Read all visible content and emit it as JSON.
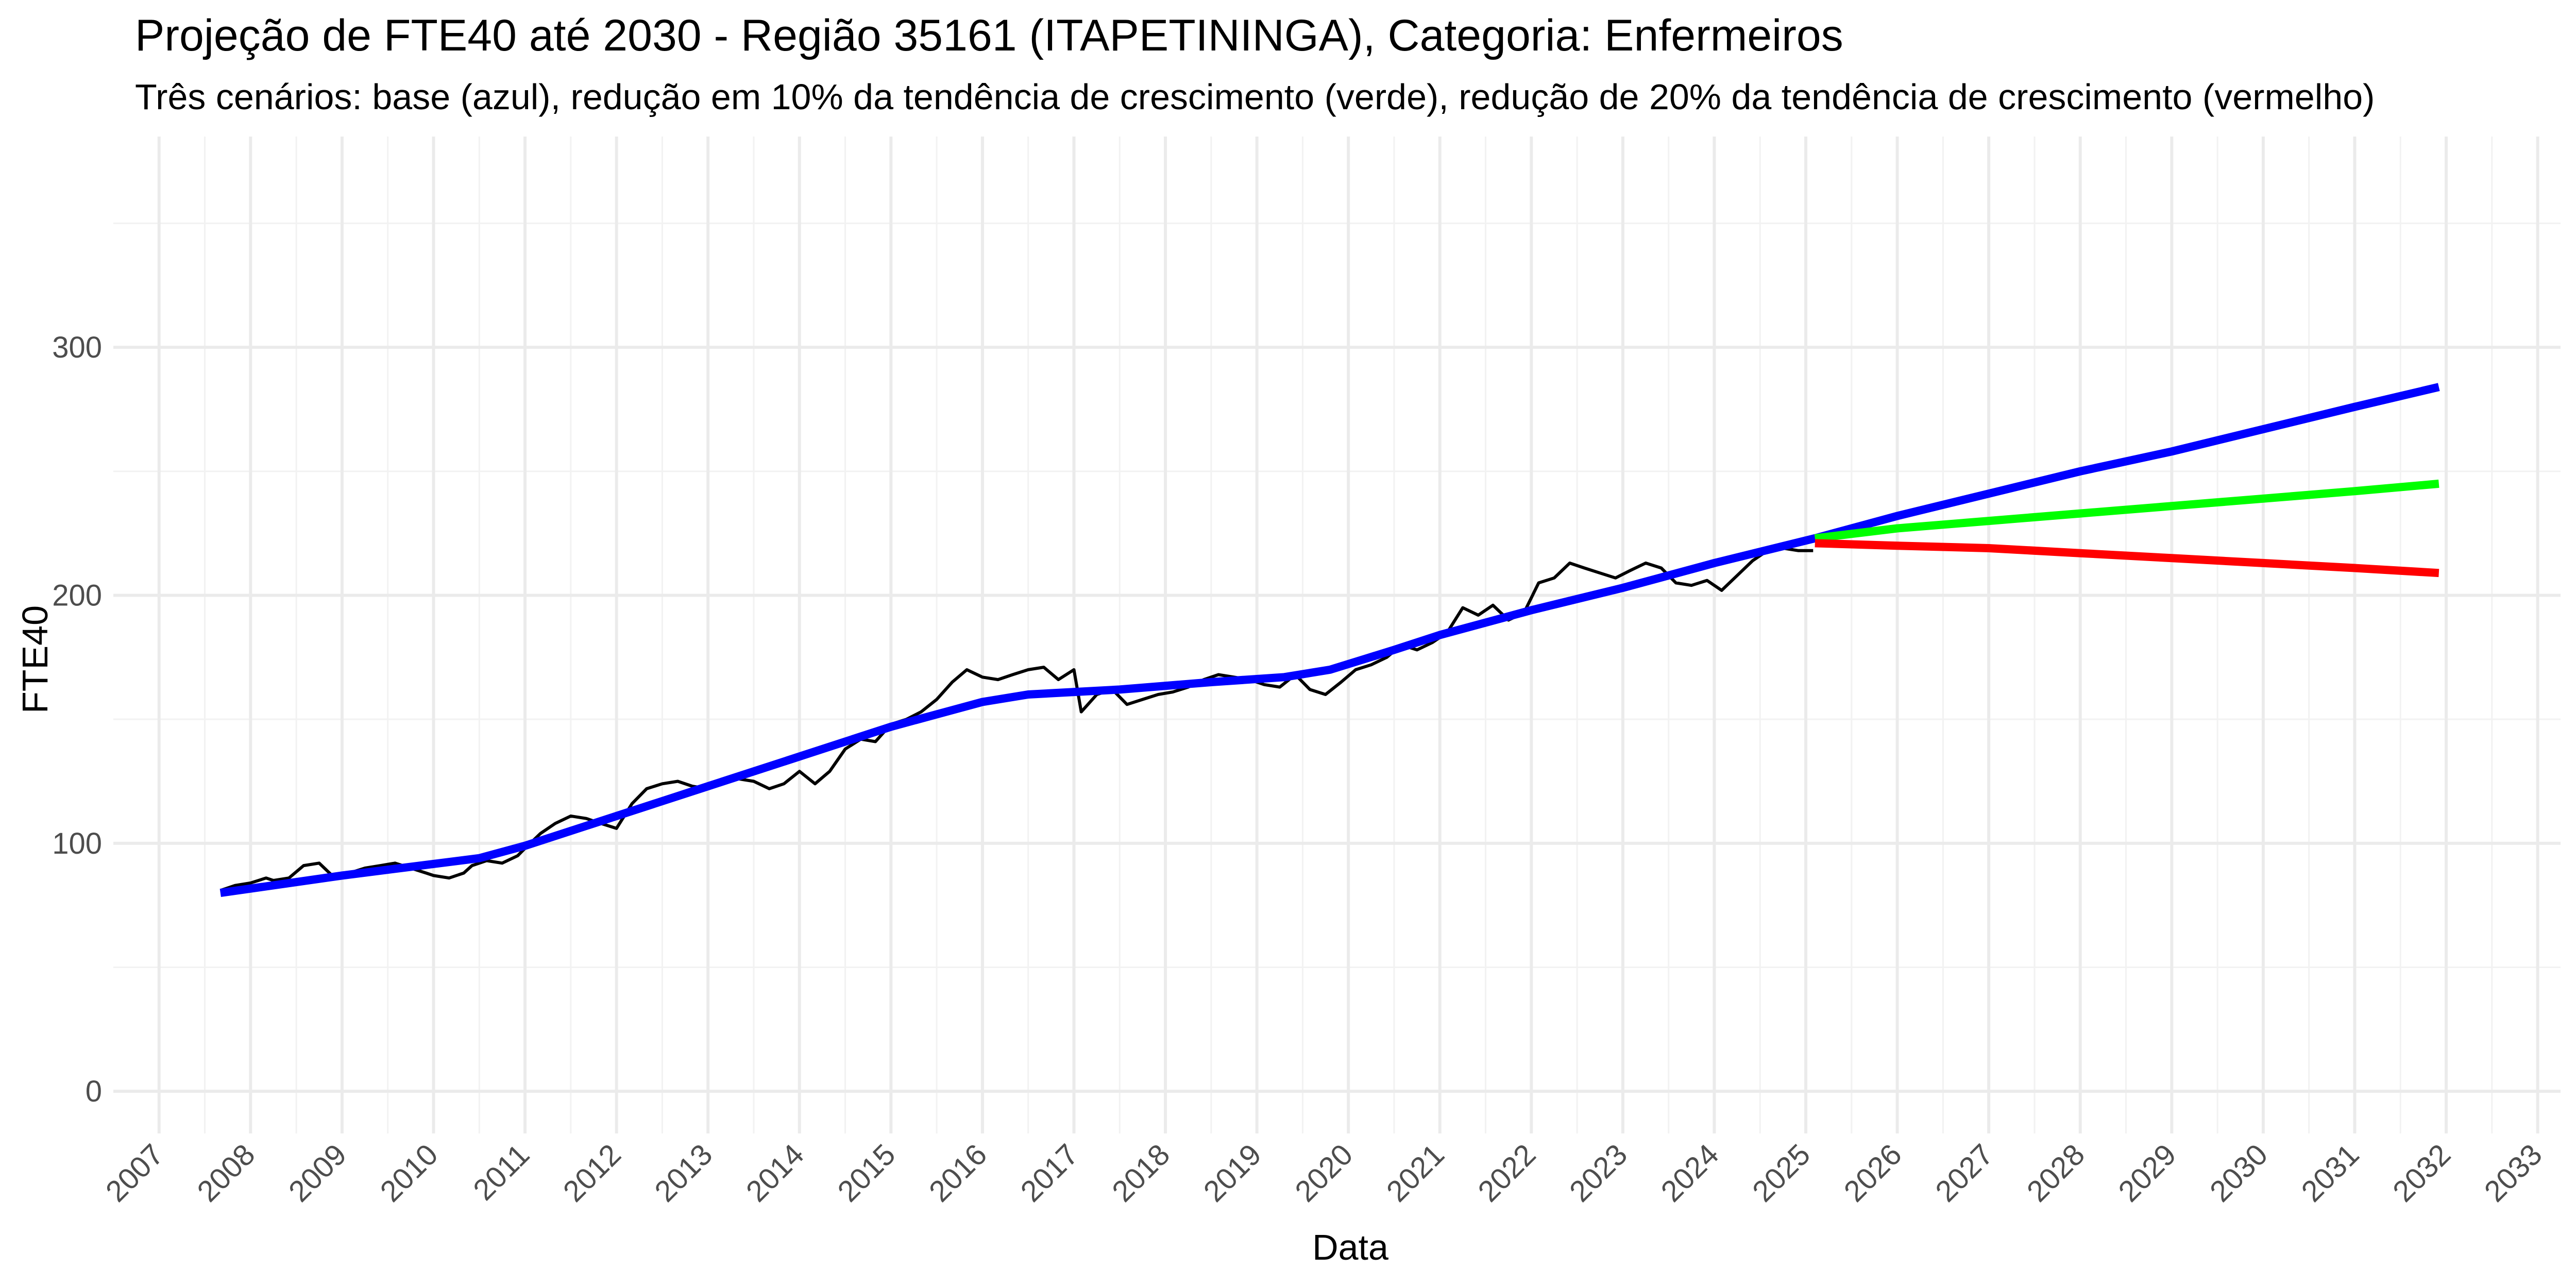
{
  "chart_data": {
    "type": "line",
    "title": "Projeção de FTE40 até 2030 - Região 35161 (ITAPETININGA), Categoria: Enfermeiros",
    "subtitle": "Três cenários: base (azul), redução em 10% da tendência de crescimento (verde), redução de 20% da tendência de crescimento (vermelho)",
    "xlabel": "Data",
    "ylabel": "FTE40",
    "xlim": [
      2006.5,
      2033.25
    ],
    "ylim": [
      -17,
      385
    ],
    "grid": true,
    "x_ticks": [
      2007,
      2008,
      2009,
      2010,
      2011,
      2012,
      2013,
      2014,
      2015,
      2016,
      2017,
      2018,
      2019,
      2020,
      2021,
      2022,
      2023,
      2024,
      2025,
      2026,
      2027,
      2028,
      2029,
      2030,
      2031,
      2032,
      2033
    ],
    "y_ticks": [
      0,
      100,
      200,
      300
    ],
    "series": [
      {
        "color": "#000000",
        "x": [
          2007.67,
          2007.83,
          2008.0,
          2008.17,
          2008.25,
          2008.42,
          2008.58,
          2008.75,
          2008.92,
          2009.08,
          2009.25,
          2009.42,
          2009.58,
          2009.75,
          2009.92,
          2010.0,
          2010.17,
          2010.33,
          2010.42,
          2010.58,
          2010.75,
          2010.92,
          2011.0,
          2011.17,
          2011.33,
          2011.5,
          2011.67,
          2011.83,
          2012.0,
          2012.17,
          2012.33,
          2012.5,
          2012.67,
          2012.83,
          2013.0,
          2013.17,
          2013.33,
          2013.5,
          2013.67,
          2013.83,
          2014.0,
          2014.17,
          2014.33,
          2014.5,
          2014.67,
          2014.83,
          2015.0,
          2015.17,
          2015.33,
          2015.5,
          2015.67,
          2015.83,
          2016.0,
          2016.17,
          2016.33,
          2016.5,
          2016.67,
          2016.83,
          2017.0,
          2017.08,
          2017.25,
          2017.42,
          2017.58,
          2017.75,
          2017.92,
          2018.08,
          2018.25,
          2018.42,
          2018.58,
          2018.75,
          2018.92,
          2019.08,
          2019.25,
          2019.42,
          2019.58,
          2019.75,
          2019.92,
          2020.08,
          2020.25,
          2020.42,
          2020.58,
          2020.75,
          2020.92,
          2021.08,
          2021.25,
          2021.42,
          2021.58,
          2021.75,
          2021.92,
          2022.08,
          2022.25,
          2022.42,
          2022.58,
          2022.75,
          2022.92,
          2023.08,
          2023.25,
          2023.42,
          2023.58,
          2023.75,
          2023.92,
          2024.08,
          2024.25,
          2024.42,
          2024.58,
          2024.75,
          2024.92,
          2025.08
        ],
        "values": [
          81,
          83,
          84,
          86,
          85,
          86,
          91,
          92,
          86,
          88,
          90,
          91,
          92,
          90,
          88,
          87,
          86,
          88,
          91,
          93,
          92,
          95,
          98,
          104,
          108,
          111,
          110,
          108,
          106,
          116,
          122,
          124,
          125,
          123,
          122,
          124,
          126,
          125,
          122,
          124,
          129,
          124,
          129,
          138,
          142,
          141,
          148,
          150,
          153,
          158,
          165,
          170,
          167,
          166,
          168,
          170,
          171,
          166,
          170,
          153,
          160,
          162,
          156,
          158,
          160,
          161,
          163,
          166,
          168,
          167,
          166,
          164,
          163,
          168,
          162,
          160,
          165,
          170,
          172,
          175,
          180,
          178,
          181,
          185,
          195,
          192,
          196,
          190,
          193,
          205,
          207,
          213,
          211,
          209,
          207,
          210,
          213,
          211,
          205,
          204,
          206,
          202,
          208,
          214,
          218,
          219,
          218,
          218
        ]
      },
      {
        "color": "#0000ff",
        "x": [
          2007.67,
          2009.0,
          2010.5,
          2011.0,
          2012.0,
          2013.0,
          2014.0,
          2015.0,
          2016.0,
          2016.5,
          2017.5,
          2018.5,
          2019.3,
          2019.8,
          2020.5,
          2021.0,
          2022.0,
          2023.0,
          2024.0,
          2025.1,
          2026.0,
          2027.0,
          2028.0,
          2029.0,
          2030.0,
          2031.0,
          2031.92
        ],
        "values": [
          80,
          87,
          94,
          99,
          111,
          123,
          135,
          147,
          157,
          160,
          162,
          165,
          167,
          170,
          178,
          184,
          194,
          203,
          213,
          223,
          232,
          241,
          250,
          258,
          267,
          276,
          284
        ]
      },
      {
        "color": "#00ff00",
        "x": [
          2025.1,
          2026.0,
          2027.0,
          2028.0,
          2029.0,
          2030.0,
          2031.0,
          2031.92
        ],
        "values": [
          223,
          227,
          230,
          233,
          236,
          239,
          242,
          245
        ]
      },
      {
        "color": "#ff0000",
        "x": [
          2025.1,
          2026.0,
          2027.0,
          2028.0,
          2029.0,
          2030.0,
          2031.0,
          2031.92
        ],
        "values": [
          221,
          220,
          219,
          217,
          215,
          213,
          211,
          209
        ]
      }
    ]
  }
}
